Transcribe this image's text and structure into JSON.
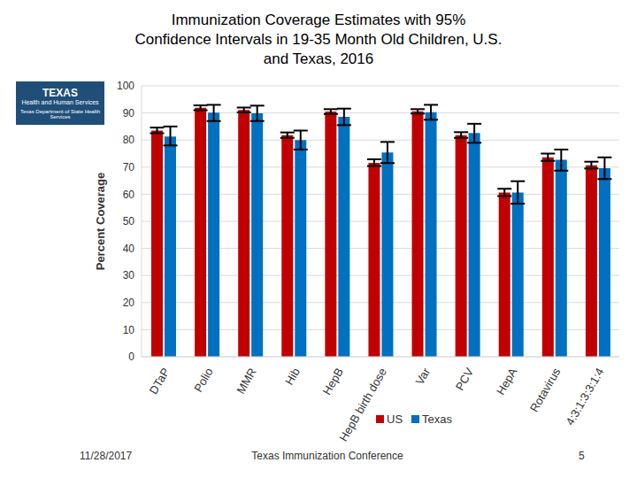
{
  "chart_data": {
    "type": "bar",
    "title": "Immunization Coverage Estimates with 95% Confidence Intervals in 19-35 Month Old Children, U.S. and Texas, 2016",
    "y_label": "Percent Coverage",
    "categories": [
      "DTaP",
      "Polio",
      "MMR",
      "Hib",
      "HepB",
      "HepB birth dose",
      "Var",
      "PCV",
      "HepA",
      "Rotavirus",
      "4:3:1:3:3:1:4"
    ],
    "series": [
      {
        "name": "US",
        "color": "#c00000",
        "values": [
          83.5,
          91.9,
          91.1,
          81.8,
          90.5,
          71.6,
          90.6,
          81.8,
          60.6,
          73.6,
          70.7
        ],
        "ci_low": [
          82.5,
          91.0,
          90.2,
          80.8,
          89.6,
          70.4,
          89.8,
          80.8,
          59.3,
          72.3,
          69.5
        ],
        "ci_high": [
          84.6,
          92.8,
          92.0,
          82.8,
          91.4,
          72.9,
          91.4,
          82.9,
          62.0,
          75.0,
          72.0
        ]
      },
      {
        "name": "Texas",
        "color": "#0070c0",
        "values": [
          81.3,
          90.1,
          89.9,
          80.0,
          88.6,
          75.4,
          90.3,
          82.6,
          60.6,
          72.7,
          69.6
        ],
        "ci_low": [
          78.0,
          87.0,
          87.0,
          76.5,
          85.5,
          71.5,
          87.5,
          79.0,
          56.5,
          68.7,
          65.6
        ],
        "ci_high": [
          85.0,
          93.0,
          92.7,
          83.5,
          91.6,
          79.3,
          93.0,
          86.0,
          64.8,
          76.5,
          73.6
        ]
      }
    ],
    "ylim": [
      0,
      100
    ],
    "yticks": [
      0,
      10,
      20,
      30,
      40,
      50,
      60,
      70,
      80,
      90,
      100
    ],
    "grid": true,
    "legend": "bottom"
  },
  "logo": {
    "name": "TEXAS",
    "line1": "Health and Human Services",
    "line2": "Texas Department of State Health Services"
  },
  "footer": {
    "date": "11/28/2017",
    "center": "Texas Immunization Conference",
    "page": "5"
  }
}
